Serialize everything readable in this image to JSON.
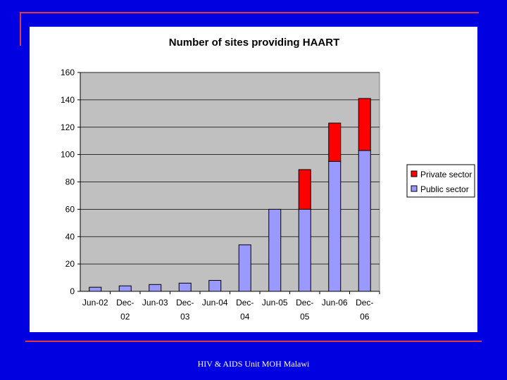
{
  "slide": {
    "footer": "HIV & AIDS Unit MOH Malawi"
  },
  "colors": {
    "background": "#0000e0",
    "accent_rule": "#e03a3a",
    "plot_area": "#c0c0c0",
    "public": "#9999ff",
    "private": "#ff0000"
  },
  "chart_data": {
    "type": "bar",
    "stacked": true,
    "title": "Number of sites providing HAART",
    "xlabel": "",
    "ylabel": "",
    "categories": [
      [
        "Jun-02"
      ],
      [
        "Dec-",
        "02"
      ],
      [
        "Jun-03"
      ],
      [
        "Dec-",
        "03"
      ],
      [
        "Jun-04"
      ],
      [
        "Dec-",
        "04"
      ],
      [
        "Jun-05"
      ],
      [
        "Dec-",
        "05"
      ],
      [
        "Jun-06"
      ],
      [
        "Dec-",
        "06"
      ]
    ],
    "series": [
      {
        "name": "Public sector",
        "color": "#9999ff",
        "values": [
          3,
          4,
          5,
          6,
          8,
          34,
          60,
          60,
          95,
          103
        ]
      },
      {
        "name": "Private sector",
        "color": "#ff0000",
        "values": [
          0,
          0,
          0,
          0,
          0,
          0,
          0,
          29,
          28,
          38
        ]
      }
    ],
    "ylim": [
      0,
      160
    ],
    "yticks": [
      0,
      20,
      40,
      60,
      80,
      100,
      120,
      140,
      160
    ],
    "grid": true,
    "legend": {
      "position": "right",
      "entries": [
        {
          "label": "Private sector",
          "color": "#ff0000"
        },
        {
          "label": "Public sector",
          "color": "#9999ff"
        }
      ]
    }
  }
}
